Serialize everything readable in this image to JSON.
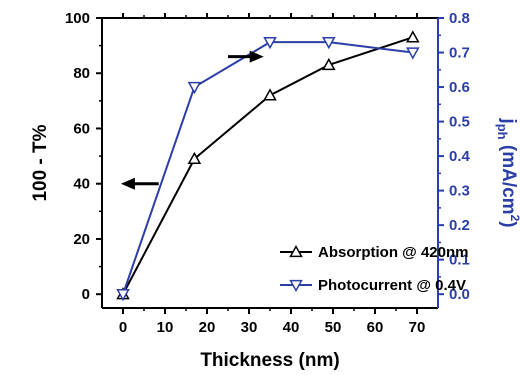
{
  "chart_data": {
    "type": "line",
    "x_axis": {
      "label": "Thickness (nm)",
      "range": [
        -5,
        75
      ],
      "ticks": [
        0,
        10,
        20,
        30,
        40,
        50,
        60,
        70
      ],
      "tick_labels": [
        "0",
        "10",
        "20",
        "30",
        "40",
        "50",
        "60",
        "70"
      ]
    },
    "y_left": {
      "label": "100 - T%",
      "range": [
        -5,
        100
      ],
      "ticks": [
        0,
        20,
        40,
        60,
        80,
        100
      ],
      "tick_labels": [
        "0",
        "20",
        "40",
        "60",
        "80",
        "100"
      ],
      "color": "#000000"
    },
    "y_right": {
      "label_main": "j",
      "label_sub": "ph",
      "label_unit_open": " (mA/cm",
      "label_sup": "2",
      "label_unit_close": ")",
      "range": [
        -0.04,
        0.8
      ],
      "ticks": [
        0.0,
        0.1,
        0.2,
        0.3,
        0.4,
        0.5,
        0.6,
        0.7,
        0.8
      ],
      "tick_labels": [
        "0.0",
        "0.1",
        "0.2",
        "0.3",
        "0.4",
        "0.5",
        "0.6",
        "0.7",
        "0.8"
      ],
      "color": "#2b3ea8"
    },
    "series": [
      {
        "name": "Absorption @ 420nm",
        "axis": "left",
        "marker": "triangle-up",
        "color": "#000000",
        "x": [
          0,
          17,
          35,
          49,
          69
        ],
        "y": [
          0,
          49,
          72,
          83,
          93
        ]
      },
      {
        "name": "Photocurrent @ 0.4V",
        "axis": "right",
        "marker": "triangle-down",
        "color": "#2b3ea8",
        "x": [
          0,
          17,
          35,
          49,
          69
        ],
        "y": [
          0.0,
          0.6,
          0.73,
          0.73,
          0.7
        ]
      }
    ],
    "annotations": [
      {
        "type": "arrow",
        "direction": "left",
        "axis": "left"
      },
      {
        "type": "arrow",
        "direction": "right",
        "axis": "right"
      }
    ],
    "legend": {
      "placement": "bottom-right"
    },
    "grid": false
  }
}
